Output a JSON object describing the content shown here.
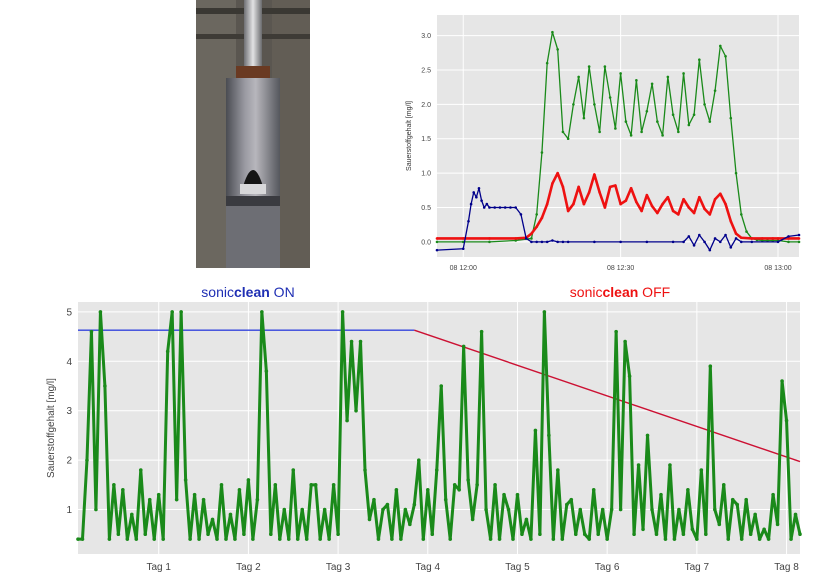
{
  "photo": {
    "icon": "sonicclean-sensor-photo"
  },
  "colors": {
    "panel": "#e6e6e6",
    "grid": "#ffffff",
    "green": "#1a8a1a",
    "red": "#ee1111",
    "blue": "#00008b",
    "label_on": "#1f2fb4",
    "label_off": "#ee1111",
    "guide_blue": "#3344dd",
    "guide_red": "#cc1133"
  },
  "chart_data": [
    {
      "type": "line",
      "ylabel": "Sauerstoffgehalt [mg/l]",
      "x_tick_labels": [
        "08 12:00",
        "08 12:30",
        "08 13:00"
      ],
      "x_ticks": [
        0,
        30,
        60
      ],
      "xlim": [
        -5,
        64
      ],
      "y_ticks": [
        0.0,
        0.5,
        1.0,
        1.5,
        2.0,
        2.5,
        3.0
      ],
      "y_tick_labels": [
        "0.0",
        "0.5",
        "1.0",
        "1.5",
        "2.0",
        "2.5",
        "3.0"
      ],
      "ylim": [
        -0.22,
        3.3
      ],
      "grid": true,
      "series": [
        {
          "color": "green",
          "x": [
            -5,
            0,
            5,
            10,
            13,
            14,
            15,
            16,
            17,
            18,
            19,
            20,
            21,
            22,
            23,
            24,
            25,
            26,
            27,
            28,
            29,
            30,
            31,
            32,
            33,
            34,
            35,
            36,
            37,
            38,
            39,
            40,
            41,
            42,
            43,
            44,
            45,
            46,
            47,
            48,
            49,
            50,
            51,
            52,
            53,
            54,
            55,
            56,
            57,
            58,
            59,
            60,
            62,
            64
          ],
          "y": [
            0.0,
            0.0,
            0.0,
            0.02,
            0.05,
            0.4,
            1.3,
            2.6,
            3.05,
            2.8,
            1.6,
            1.5,
            2.0,
            2.4,
            1.8,
            2.55,
            2.0,
            1.6,
            2.55,
            2.1,
            1.65,
            2.45,
            1.75,
            1.55,
            2.35,
            1.6,
            1.9,
            2.3,
            1.75,
            1.55,
            2.4,
            1.85,
            1.6,
            2.45,
            1.7,
            1.85,
            2.65,
            2.0,
            1.75,
            2.2,
            2.85,
            2.7,
            1.8,
            1.0,
            0.4,
            0.15,
            0.05,
            0.03,
            0.02,
            0.02,
            0.02,
            0.02,
            0.0,
            0.0
          ]
        },
        {
          "color": "red",
          "x": [
            -5,
            0,
            5,
            10,
            12,
            13,
            14,
            15,
            16,
            17,
            18,
            19,
            20,
            21,
            22,
            23,
            24,
            25,
            26,
            27,
            28,
            29,
            30,
            31,
            32,
            33,
            34,
            35,
            36,
            37,
            38,
            39,
            40,
            41,
            42,
            43,
            44,
            45,
            46,
            47,
            48,
            49,
            50,
            51,
            52,
            53,
            55,
            57,
            59,
            60,
            62,
            64
          ],
          "y": [
            0.05,
            0.05,
            0.05,
            0.05,
            0.06,
            0.12,
            0.22,
            0.35,
            0.55,
            0.85,
            1.0,
            0.8,
            0.45,
            0.55,
            0.8,
            0.55,
            0.72,
            0.98,
            0.72,
            0.5,
            0.8,
            0.82,
            0.55,
            0.6,
            0.78,
            0.58,
            0.45,
            0.68,
            0.52,
            0.42,
            0.55,
            0.65,
            0.45,
            0.4,
            0.62,
            0.5,
            0.42,
            0.65,
            0.48,
            0.4,
            0.62,
            0.7,
            0.55,
            0.3,
            0.12,
            0.06,
            0.05,
            0.05,
            0.05,
            0.05,
            0.05,
            0.05
          ]
        },
        {
          "color": "blue",
          "x": [
            -5,
            0,
            1,
            1.5,
            2,
            2.5,
            3,
            3.5,
            4,
            4.5,
            5,
            6,
            7,
            8,
            9,
            10,
            11,
            12,
            13,
            14,
            15,
            16,
            17,
            18,
            19,
            20,
            25,
            30,
            35,
            40,
            42,
            43,
            44,
            45,
            46,
            47,
            48,
            49,
            50,
            51,
            52,
            53,
            55,
            60,
            62,
            64
          ],
          "y": [
            -0.12,
            -0.1,
            0.3,
            0.55,
            0.72,
            0.65,
            0.78,
            0.6,
            0.5,
            0.55,
            0.5,
            0.5,
            0.5,
            0.5,
            0.5,
            0.5,
            0.4,
            0.05,
            0.0,
            0.0,
            0.0,
            0.0,
            0.02,
            0.0,
            0.0,
            0.0,
            0.0,
            0.0,
            0.0,
            0.0,
            0.0,
            0.08,
            -0.05,
            0.1,
            0.0,
            -0.12,
            0.05,
            0.0,
            0.1,
            -0.08,
            0.05,
            0.0,
            0.0,
            0.0,
            0.08,
            0.1
          ]
        }
      ]
    },
    {
      "type": "line",
      "ylabel": "Sauerstoffgehalt [mg/l]",
      "x_tick_labels": [
        "Tag 1",
        "Tag 2",
        "Tag 3",
        "Tag 4",
        "Tag 5",
        "Tag 6",
        "Tag 7",
        "Tag 8"
      ],
      "x_ticks": [
        1,
        2,
        3,
        4,
        5,
        6,
        7,
        8
      ],
      "xlim": [
        0.1,
        8.15
      ],
      "y_ticks": [
        1,
        2,
        3,
        4,
        5
      ],
      "y_tick_labels": [
        "1",
        "2",
        "3",
        "4",
        "5"
      ],
      "ylim": [
        0.1,
        5.2
      ],
      "grid": true,
      "annotations": [
        {
          "prefix": "sonic",
          "bold": "clean",
          "suffix": " ON",
          "color": "label_on"
        },
        {
          "prefix": "sonic",
          "bold": "clean",
          "suffix": " OFF",
          "color": "label_off"
        }
      ],
      "guides": [
        {
          "color": "guide_blue",
          "x": [
            0.1,
            3.85
          ],
          "y": [
            4.63,
            4.63
          ]
        },
        {
          "color": "guide_red",
          "x": [
            3.85,
            8.15
          ],
          "y": [
            4.63,
            1.97
          ]
        }
      ],
      "series": [
        {
          "color": "green",
          "x": [
            0.1,
            0.15,
            0.2,
            0.25,
            0.3,
            0.35,
            0.4,
            0.45,
            0.5,
            0.55,
            0.6,
            0.65,
            0.7,
            0.75,
            0.8,
            0.85,
            0.9,
            0.95,
            1.0,
            1.05,
            1.1,
            1.15,
            1.2,
            1.25,
            1.3,
            1.35,
            1.4,
            1.45,
            1.5,
            1.55,
            1.6,
            1.65,
            1.7,
            1.75,
            1.8,
            1.85,
            1.9,
            1.95,
            2.0,
            2.05,
            2.1,
            2.15,
            2.2,
            2.25,
            2.3,
            2.35,
            2.4,
            2.45,
            2.5,
            2.55,
            2.6,
            2.65,
            2.7,
            2.75,
            2.8,
            2.85,
            2.9,
            2.95,
            3.0,
            3.05,
            3.1,
            3.15,
            3.2,
            3.25,
            3.3,
            3.35,
            3.4,
            3.45,
            3.5,
            3.55,
            3.6,
            3.65,
            3.7,
            3.75,
            3.8,
            3.85,
            3.9,
            3.95,
            4.0,
            4.05,
            4.1,
            4.15,
            4.2,
            4.25,
            4.3,
            4.35,
            4.4,
            4.45,
            4.5,
            4.55,
            4.6,
            4.65,
            4.7,
            4.75,
            4.8,
            4.85,
            4.9,
            4.95,
            5.0,
            5.05,
            5.1,
            5.15,
            5.2,
            5.25,
            5.3,
            5.35,
            5.4,
            5.45,
            5.5,
            5.55,
            5.6,
            5.65,
            5.7,
            5.75,
            5.8,
            5.85,
            5.9,
            5.95,
            6.0,
            6.05,
            6.1,
            6.15,
            6.2,
            6.25,
            6.3,
            6.35,
            6.4,
            6.45,
            6.5,
            6.55,
            6.6,
            6.65,
            6.7,
            6.75,
            6.8,
            6.85,
            6.9,
            6.95,
            7.0,
            7.05,
            7.1,
            7.15,
            7.2,
            7.25,
            7.3,
            7.35,
            7.4,
            7.45,
            7.5,
            7.55,
            7.6,
            7.65,
            7.7,
            7.75,
            7.8,
            7.85,
            7.9,
            7.95,
            8.0,
            8.05,
            8.1,
            8.15
          ],
          "y": [
            0.4,
            0.4,
            2.0,
            4.6,
            1.0,
            5.0,
            3.5,
            0.4,
            1.5,
            0.5,
            1.4,
            0.4,
            0.9,
            0.4,
            1.8,
            0.5,
            1.2,
            0.4,
            1.3,
            0.4,
            4.2,
            5.0,
            1.2,
            5.0,
            1.6,
            0.4,
            1.3,
            0.4,
            1.2,
            0.5,
            0.8,
            0.4,
            1.5,
            0.4,
            0.9,
            0.4,
            1.4,
            0.5,
            1.6,
            0.4,
            1.2,
            5.0,
            3.8,
            0.5,
            1.5,
            0.4,
            1.0,
            0.4,
            1.8,
            0.4,
            1.0,
            0.4,
            1.5,
            1.5,
            0.4,
            1.0,
            0.4,
            1.5,
            0.5,
            5.0,
            2.8,
            4.4,
            3.0,
            4.4,
            1.8,
            0.8,
            1.2,
            0.4,
            1.0,
            1.1,
            0.4,
            1.4,
            0.4,
            1.0,
            0.7,
            1.1,
            2.0,
            0.4,
            1.4,
            0.5,
            1.8,
            3.5,
            1.2,
            0.4,
            1.5,
            1.4,
            4.3,
            1.6,
            0.8,
            1.5,
            4.6,
            1.0,
            0.4,
            1.5,
            0.4,
            1.3,
            1.0,
            0.4,
            1.3,
            0.5,
            0.8,
            0.4,
            2.6,
            0.5,
            5.0,
            2.5,
            0.4,
            1.8,
            0.4,
            1.1,
            1.2,
            0.5,
            1.0,
            0.5,
            0.4,
            1.4,
            0.5,
            1.0,
            0.4,
            1.0,
            4.6,
            1.0,
            4.4,
            3.7,
            0.5,
            1.9,
            0.6,
            2.5,
            1.0,
            0.5,
            1.3,
            0.4,
            1.9,
            0.4,
            1.0,
            0.5,
            1.4,
            0.6,
            0.4,
            1.8,
            0.5,
            3.9,
            1.0,
            0.7,
            1.5,
            0.4,
            1.2,
            1.1,
            0.4,
            1.2,
            0.5,
            0.9,
            0.4,
            0.6,
            0.4,
            1.3,
            0.7,
            3.6,
            2.8,
            0.4,
            0.9,
            0.5
          ]
        }
      ]
    }
  ]
}
